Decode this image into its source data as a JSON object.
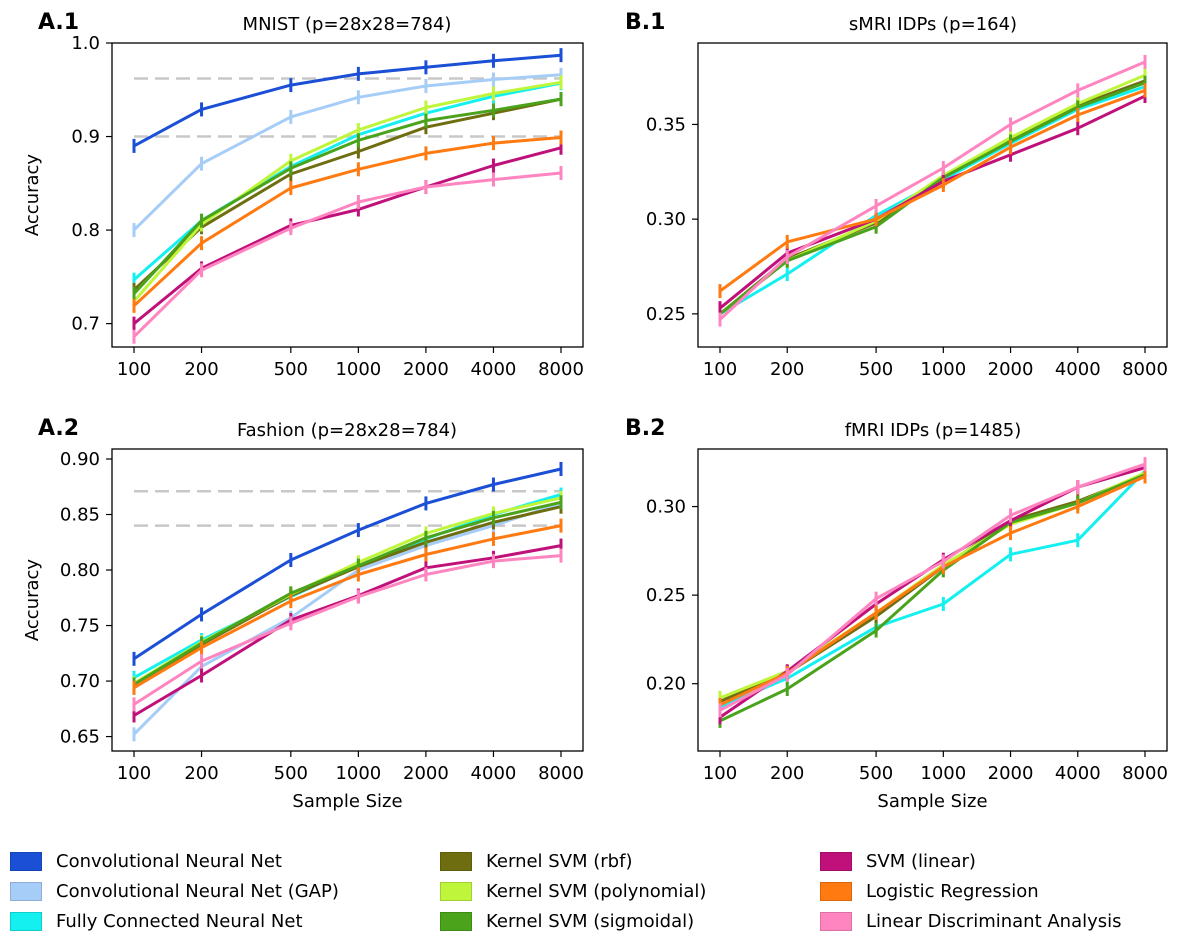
{
  "legend": [
    {
      "name": "Convolutional Neural Net",
      "color": "#1a4fd6"
    },
    {
      "name": "Convolutional Neural Net (GAP)",
      "color": "#a6cdf7"
    },
    {
      "name": "Fully Connected Neural Net",
      "color": "#14f0f0"
    },
    {
      "name": "Kernel SVM (rbf)",
      "color": "#6e6e10"
    },
    {
      "name": "Kernel SVM (polynomial)",
      "color": "#bff53a"
    },
    {
      "name": "Kernel SVM (sigmoidal)",
      "color": "#4aa31a"
    },
    {
      "name": "SVM (linear)",
      "color": "#c0107a"
    },
    {
      "name": "Logistic Regression",
      "color": "#ff7a10"
    },
    {
      "name": "Linear Discriminant Analysis",
      "color": "#ff85c0"
    }
  ],
  "chart_data": [
    {
      "panel": "A.1",
      "type": "line",
      "title": "MNIST (p=28x28=784)",
      "xlabel": "",
      "ylabel": "Accuracy",
      "x": [
        100,
        200,
        500,
        1000,
        2000,
        4000,
        8000
      ],
      "xscale": "log",
      "ylim": [
        0.675,
        1.0
      ],
      "yticks": [
        0.7,
        0.8,
        0.9,
        1.0
      ],
      "ytick_labels": [
        "0.7",
        "0.8",
        "0.9",
        "1.0"
      ],
      "reference_lines": [
        0.962,
        0.9
      ],
      "series": [
        {
          "name": "Convolutional Neural Net",
          "values": [
            0.89,
            0.929,
            0.955,
            0.967,
            0.974,
            0.981,
            0.987
          ]
        },
        {
          "name": "Convolutional Neural Net (GAP)",
          "values": [
            0.8,
            0.871,
            0.921,
            0.942,
            0.954,
            0.961,
            0.966
          ]
        },
        {
          "name": "Fully Connected Neural Net",
          "values": [
            0.747,
            0.81,
            0.868,
            0.902,
            0.925,
            0.943,
            0.957
          ]
        },
        {
          "name": "Kernel SVM (rbf)",
          "values": [
            0.736,
            0.803,
            0.86,
            0.884,
            0.91,
            0.925,
            0.94
          ]
        },
        {
          "name": "Kernel SVM (polynomial)",
          "values": [
            0.724,
            0.806,
            0.874,
            0.907,
            0.931,
            0.946,
            0.958
          ]
        },
        {
          "name": "Kernel SVM (sigmoidal)",
          "values": [
            0.732,
            0.81,
            0.866,
            0.896,
            0.917,
            0.928,
            0.94
          ]
        },
        {
          "name": "SVM (linear)",
          "values": [
            0.7,
            0.759,
            0.805,
            0.822,
            0.846,
            0.869,
            0.888
          ]
        },
        {
          "name": "Logistic Regression",
          "values": [
            0.719,
            0.786,
            0.845,
            0.865,
            0.882,
            0.893,
            0.899
          ]
        },
        {
          "name": "Linear Discriminant Analysis",
          "values": [
            0.686,
            0.757,
            0.802,
            0.83,
            0.846,
            0.854,
            0.861
          ]
        }
      ]
    },
    {
      "panel": "B.1",
      "type": "line",
      "title": "sMRI IDPs (p=164)",
      "xlabel": "",
      "ylabel": "",
      "x": [
        100,
        200,
        500,
        1000,
        2000,
        4000,
        8000
      ],
      "xscale": "log",
      "ylim": [
        0.2325,
        0.393
      ],
      "yticks": [
        0.25,
        0.3,
        0.35
      ],
      "ytick_labels": [
        "0.25",
        "0.30",
        "0.35"
      ],
      "reference_lines": [],
      "series": [
        {
          "name": "Fully Connected Neural Net",
          "values": [
            0.25,
            0.271,
            0.302,
            0.321,
            0.34,
            0.358,
            0.37
          ]
        },
        {
          "name": "Kernel SVM (rbf)",
          "values": [
            0.25,
            0.279,
            0.298,
            0.322,
            0.342,
            0.36,
            0.373
          ]
        },
        {
          "name": "Kernel SVM (polynomial)",
          "values": [
            0.25,
            0.278,
            0.299,
            0.323,
            0.343,
            0.361,
            0.376
          ]
        },
        {
          "name": "Kernel SVM (sigmoidal)",
          "values": [
            0.25,
            0.278,
            0.296,
            0.322,
            0.341,
            0.359,
            0.372
          ]
        },
        {
          "name": "SVM (linear)",
          "values": [
            0.253,
            0.282,
            0.3,
            0.32,
            0.334,
            0.348,
            0.365
          ]
        },
        {
          "name": "Logistic Regression",
          "values": [
            0.262,
            0.288,
            0.3,
            0.318,
            0.338,
            0.355,
            0.368
          ]
        },
        {
          "name": "Linear Discriminant Analysis",
          "values": [
            0.247,
            0.28,
            0.307,
            0.327,
            0.35,
            0.368,
            0.383
          ]
        }
      ]
    },
    {
      "panel": "A.2",
      "type": "line",
      "title": "Fashion (p=28x28=784)",
      "xlabel": "Sample Size",
      "ylabel": "Accuracy",
      "x": [
        100,
        200,
        500,
        1000,
        2000,
        4000,
        8000
      ],
      "xscale": "log",
      "ylim": [
        0.637,
        0.909
      ],
      "yticks": [
        0.65,
        0.7,
        0.75,
        0.8,
        0.85,
        0.9
      ],
      "ytick_labels": [
        "0.65",
        "0.70",
        "0.75",
        "0.80",
        "0.85",
        "0.90"
      ],
      "reference_lines": [
        0.871,
        0.84
      ],
      "series": [
        {
          "name": "Convolutional Neural Net",
          "values": [
            0.72,
            0.76,
            0.809,
            0.836,
            0.86,
            0.877,
            0.891
          ]
        },
        {
          "name": "Convolutional Neural Net (GAP)",
          "values": [
            0.652,
            0.713,
            0.757,
            0.8,
            0.822,
            0.84,
            0.86
          ]
        },
        {
          "name": "Fully Connected Neural Net",
          "values": [
            0.703,
            0.737,
            0.776,
            0.804,
            0.828,
            0.85,
            0.868
          ]
        },
        {
          "name": "Kernel SVM (rbf)",
          "values": [
            0.694,
            0.733,
            0.777,
            0.803,
            0.825,
            0.843,
            0.857
          ]
        },
        {
          "name": "Kernel SVM (polynomial)",
          "values": [
            0.698,
            0.735,
            0.778,
            0.807,
            0.833,
            0.851,
            0.865
          ]
        },
        {
          "name": "Kernel SVM (sigmoidal)",
          "values": [
            0.697,
            0.734,
            0.779,
            0.804,
            0.829,
            0.847,
            0.861
          ]
        },
        {
          "name": "SVM (linear)",
          "values": [
            0.669,
            0.705,
            0.755,
            0.777,
            0.802,
            0.811,
            0.822
          ]
        },
        {
          "name": "Logistic Regression",
          "values": [
            0.694,
            0.73,
            0.772,
            0.796,
            0.814,
            0.828,
            0.84
          ]
        },
        {
          "name": "Linear Discriminant Analysis",
          "values": [
            0.679,
            0.718,
            0.752,
            0.776,
            0.796,
            0.808,
            0.813
          ]
        }
      ]
    },
    {
      "panel": "B.2",
      "type": "line",
      "title": "fMRI IDPs (p=1485)",
      "xlabel": "Sample Size",
      "ylabel": "",
      "x": [
        100,
        200,
        500,
        1000,
        2000,
        4000,
        8000
      ],
      "xscale": "log",
      "ylim": [
        0.162,
        0.3325
      ],
      "yticks": [
        0.2,
        0.25,
        0.3
      ],
      "ytick_labels": [
        "0.20",
        "0.25",
        "0.30"
      ],
      "reference_lines": [],
      "series": [
        {
          "name": "Fully Connected Neural Net",
          "values": [
            0.187,
            0.203,
            0.232,
            0.245,
            0.273,
            0.281,
            0.32
          ]
        },
        {
          "name": "Kernel SVM (rbf)",
          "values": [
            0.19,
            0.206,
            0.238,
            0.266,
            0.292,
            0.303,
            0.318
          ]
        },
        {
          "name": "Kernel SVM (polynomial)",
          "values": [
            0.192,
            0.207,
            0.24,
            0.267,
            0.29,
            0.302,
            0.319
          ]
        },
        {
          "name": "Kernel SVM (sigmoidal)",
          "values": [
            0.179,
            0.197,
            0.23,
            0.264,
            0.291,
            0.302,
            0.318
          ]
        },
        {
          "name": "SVM (linear)",
          "values": [
            0.181,
            0.207,
            0.245,
            0.27,
            0.292,
            0.311,
            0.322
          ]
        },
        {
          "name": "Logistic Regression",
          "values": [
            0.188,
            0.206,
            0.24,
            0.266,
            0.285,
            0.3,
            0.317
          ]
        },
        {
          "name": "Linear Discriminant Analysis",
          "values": [
            0.185,
            0.205,
            0.248,
            0.269,
            0.295,
            0.311,
            0.324
          ]
        }
      ]
    }
  ],
  "panels_text": [
    {
      "label": "A.1",
      "title": "MNIST (p=28x28=784)"
    },
    {
      "label": "B.1",
      "title": "sMRI IDPs (p=164)"
    },
    {
      "label": "A.2",
      "title": "Fashion (p=28x28=784)"
    },
    {
      "label": "B.2",
      "title": "fMRI IDPs (p=1485)"
    }
  ],
  "x_tick_labels": [
    "100",
    "200",
    "500",
    "1000",
    "2000",
    "4000",
    "8000"
  ]
}
